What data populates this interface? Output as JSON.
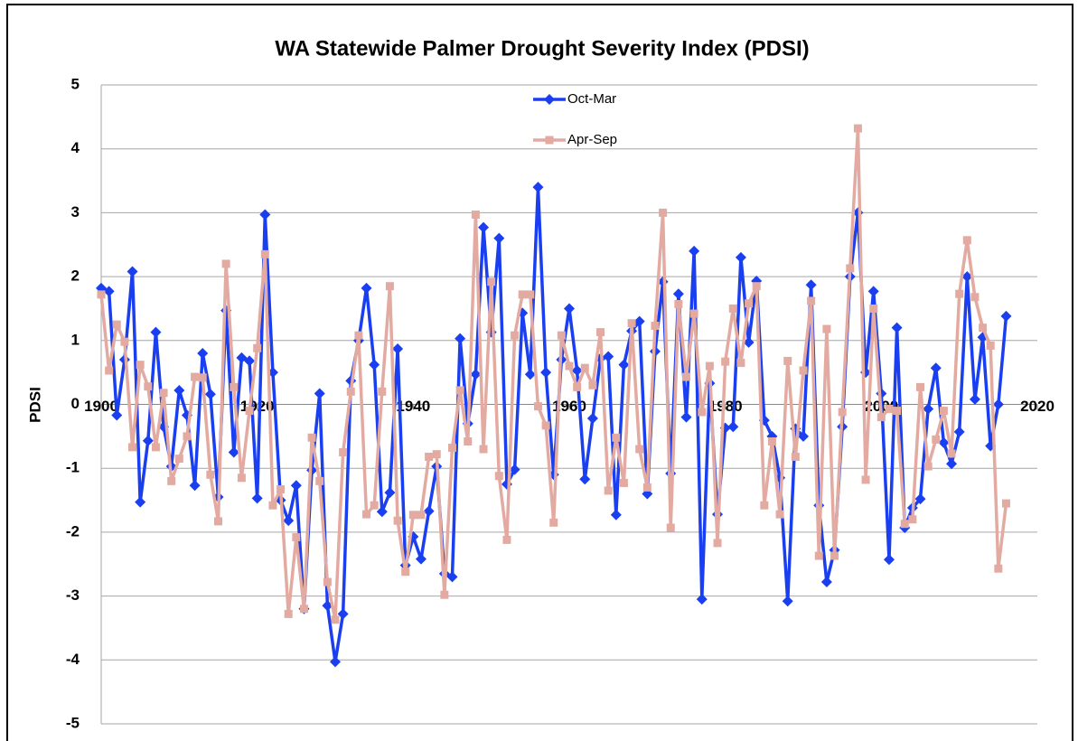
{
  "chart_data": {
    "type": "line",
    "title": "WA Statewide Palmer Drought Severity Index (PDSI)",
    "y_label": "PDSI",
    "x": [
      1900,
      1901,
      1902,
      1903,
      1904,
      1905,
      1906,
      1907,
      1908,
      1909,
      1910,
      1911,
      1912,
      1913,
      1914,
      1915,
      1916,
      1917,
      1918,
      1919,
      1920,
      1921,
      1922,
      1923,
      1924,
      1925,
      1926,
      1927,
      1928,
      1929,
      1930,
      1931,
      1932,
      1933,
      1934,
      1935,
      1936,
      1937,
      1938,
      1939,
      1940,
      1941,
      1942,
      1943,
      1944,
      1945,
      1946,
      1947,
      1948,
      1949,
      1950,
      1951,
      1952,
      1953,
      1954,
      1955,
      1956,
      1957,
      1958,
      1959,
      1960,
      1961,
      1962,
      1963,
      1964,
      1965,
      1966,
      1967,
      1968,
      1969,
      1970,
      1971,
      1972,
      1973,
      1974,
      1975,
      1976,
      1977,
      1978,
      1979,
      1980,
      1981,
      1982,
      1983,
      1984,
      1985,
      1986,
      1987,
      1988,
      1989,
      1990,
      1991,
      1992,
      1993,
      1994,
      1995,
      1996,
      1997,
      1998,
      1999,
      2000,
      2001,
      2002,
      2003,
      2004,
      2005,
      2006,
      2007,
      2008,
      2009,
      2010,
      2011,
      2012,
      2013,
      2014,
      2015,
      2016
    ],
    "series": [
      {
        "name": "Oct-Mar",
        "color": "#1a3ff0",
        "marker": "diamond",
        "values": [
          1.82,
          1.77,
          -0.17,
          0.7,
          2.08,
          -1.53,
          -0.57,
          1.13,
          -0.35,
          -0.97,
          0.22,
          -0.17,
          -1.27,
          0.8,
          0.16,
          -1.45,
          1.47,
          -0.75,
          0.73,
          0.68,
          -1.47,
          2.97,
          0.5,
          -1.5,
          -1.82,
          -1.27,
          -3.2,
          -1.03,
          0.17,
          -3.15,
          -4.03,
          -3.28,
          0.37,
          1.0,
          1.82,
          0.62,
          -1.68,
          -1.38,
          0.87,
          -2.52,
          -2.07,
          -2.42,
          -1.67,
          -0.97,
          -2.65,
          -2.7,
          1.03,
          -0.3,
          0.47,
          2.77,
          1.13,
          2.6,
          -1.25,
          -1.02,
          1.43,
          0.47,
          3.4,
          0.5,
          -1.1,
          0.7,
          1.5,
          0.53,
          -1.17,
          -0.22,
          0.72,
          0.75,
          -1.73,
          0.62,
          1.15,
          1.3,
          -1.4,
          0.83,
          1.92,
          -1.08,
          1.73,
          -0.2,
          2.4,
          -3.05,
          0.33,
          -1.72,
          -0.37,
          -0.35,
          2.3,
          0.97,
          1.93,
          -0.25,
          -0.5,
          -1.15,
          -3.08,
          -0.38,
          -0.5,
          1.87,
          -1.58,
          -2.78,
          -2.28,
          -0.35,
          2.0,
          3.0,
          0.5,
          1.77,
          0.17,
          -2.43,
          1.2,
          -1.93,
          -1.62,
          -1.48,
          -0.07,
          0.57,
          -0.6,
          -0.93,
          -0.43,
          2.0,
          0.08,
          1.05,
          -0.65,
          0.0,
          1.38
        ]
      },
      {
        "name": "Apr-Sep",
        "color": "#e3aaa2",
        "marker": "square",
        "values": [
          1.72,
          0.53,
          1.25,
          0.98,
          -0.67,
          0.62,
          0.28,
          -0.67,
          0.18,
          -1.2,
          -0.85,
          -0.5,
          0.43,
          0.42,
          -1.1,
          -1.83,
          2.2,
          0.27,
          -1.15,
          -0.1,
          0.88,
          2.35,
          -1.58,
          -1.33,
          -3.28,
          -2.08,
          -3.2,
          -0.52,
          -1.2,
          -2.78,
          -3.37,
          -0.75,
          0.2,
          1.08,
          -1.72,
          -1.58,
          0.2,
          1.85,
          -1.82,
          -2.62,
          -1.73,
          -1.73,
          -0.82,
          -0.78,
          -2.98,
          -0.68,
          0.22,
          -0.58,
          2.97,
          -0.7,
          1.92,
          -1.12,
          -2.12,
          1.08,
          1.72,
          1.72,
          -0.03,
          -0.33,
          -1.85,
          1.08,
          0.6,
          0.27,
          0.57,
          0.3,
          1.13,
          -1.35,
          -0.52,
          -1.23,
          1.27,
          -0.7,
          -1.3,
          1.23,
          3.0,
          -1.93,
          1.57,
          0.43,
          1.42,
          -0.12,
          0.6,
          -2.17,
          0.67,
          1.5,
          0.65,
          1.58,
          1.85,
          -1.58,
          -0.58,
          -1.72,
          0.68,
          -0.82,
          0.53,
          1.62,
          -2.37,
          1.18,
          -2.37,
          -0.12,
          2.13,
          4.32,
          -1.18,
          1.5,
          -0.2,
          -0.07,
          -0.1,
          -1.87,
          -1.8,
          0.27,
          -0.97,
          -0.55,
          -0.1,
          -0.77,
          1.73,
          2.57,
          1.68,
          1.2,
          0.92,
          -2.57,
          -1.55
        ]
      }
    ],
    "xlim": [
      1900,
      2020
    ],
    "xticks": [
      1900,
      1920,
      1940,
      1960,
      1980,
      2000,
      2020
    ],
    "ylim": [
      -5,
      5
    ],
    "yticks": [
      -5,
      -4,
      -3,
      -2,
      -1,
      0,
      1,
      2,
      3,
      4,
      5
    ],
    "grid": true,
    "legend": "top"
  }
}
